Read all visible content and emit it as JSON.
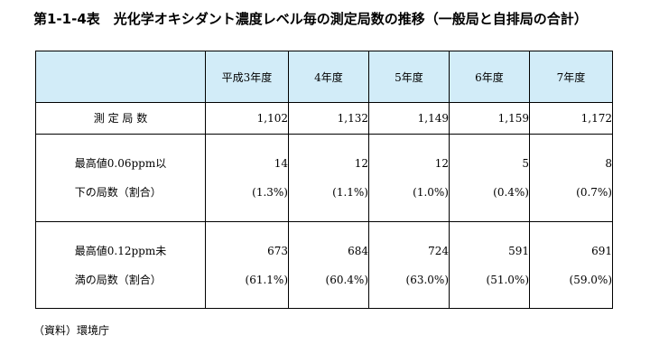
{
  "title": "第1-1-4表　光化学オキシダント濃度レベル毎の測定局数の推移（一般局と自排局の合計）",
  "table": {
    "years": [
      "平成3年度",
      "4年度",
      "5年度",
      "6年度",
      "7年度"
    ],
    "rows": [
      {
        "label_line1": "測 定 局 数",
        "values": [
          "1,102",
          "1,132",
          "1,149",
          "1,159",
          "1,172"
        ]
      },
      {
        "label_line1": "最高値0.06ppm以",
        "label_line2": "下の局数（割合）",
        "counts": [
          "14",
          "12",
          "12",
          "5",
          "8"
        ],
        "shares": [
          "(1.3%)",
          "(1.1%)",
          "(1.0%)",
          "(0.4%)",
          "(0.7%)"
        ]
      },
      {
        "label_line1": "最高値0.12ppm未",
        "label_line2": "満の局数（割合）",
        "counts": [
          "673",
          "684",
          "724",
          "591",
          "691"
        ],
        "shares": [
          "(61.1%)",
          "(60.4%)",
          "(63.0%)",
          "(51.0%)",
          "(59.0%)"
        ]
      }
    ]
  },
  "source": "（資料）環境庁",
  "colors": {
    "header_background": "#d2ecf8",
    "border": "#000000"
  }
}
